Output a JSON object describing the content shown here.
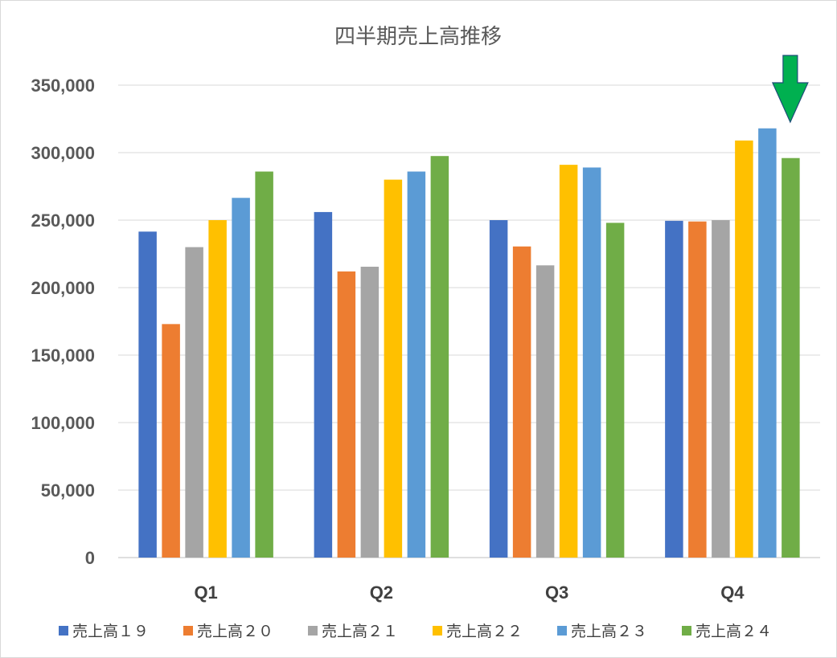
{
  "chart_data": {
    "type": "bar",
    "title": "四半期売上高推移",
    "categories": [
      "Q1",
      "Q2",
      "Q3",
      "Q4"
    ],
    "series": [
      {
        "name": "売上高１９",
        "color": "#4472C4",
        "values": [
          241500,
          256000,
          250000,
          249500
        ]
      },
      {
        "name": "売上高２０",
        "color": "#ED7D31",
        "values": [
          173000,
          212000,
          230500,
          249000
        ]
      },
      {
        "name": "売上高２１",
        "color": "#A5A5A5",
        "values": [
          230000,
          215500,
          216500,
          250000
        ]
      },
      {
        "name": "売上高２２",
        "color": "#FFC000",
        "values": [
          250000,
          280000,
          291000,
          309000
        ]
      },
      {
        "name": "売上高２３",
        "color": "#5B9BD5",
        "values": [
          266500,
          286000,
          289000,
          318000
        ]
      },
      {
        "name": "売上高２４",
        "color": "#70AD47",
        "values": [
          286000,
          297500,
          248000,
          296000
        ]
      }
    ],
    "yticks": [
      "0",
      "50,000",
      "100,000",
      "150,000",
      "200,000",
      "250,000",
      "300,000",
      "350,000"
    ],
    "ylim": [
      0,
      350000
    ],
    "grid": true,
    "legend_position": "bottom",
    "annotation": {
      "type": "arrow",
      "shape": "down-arrow-icon",
      "color": "#00B050",
      "points_to": "Q4 売上高２４"
    }
  }
}
